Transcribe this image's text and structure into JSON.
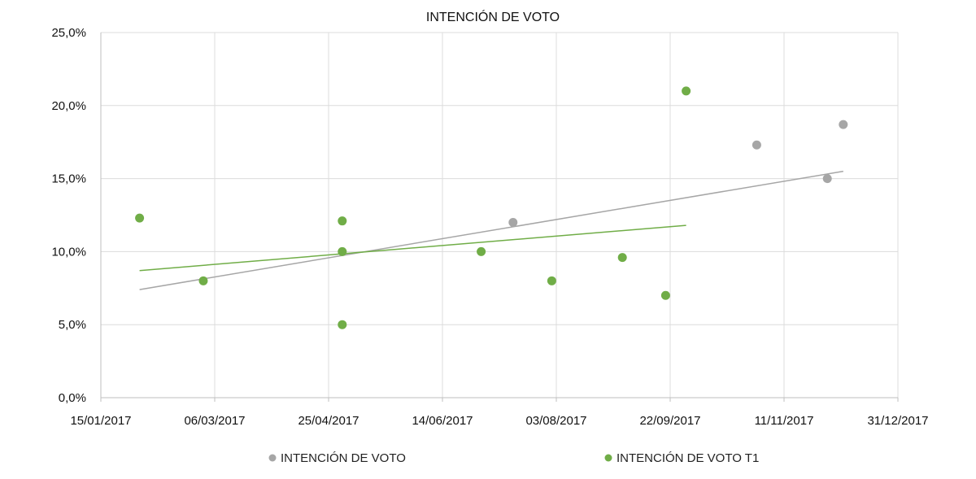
{
  "chart_data": {
    "type": "scatter",
    "title": "INTENCIÓN DE VOTO",
    "xlabel": "",
    "ylabel": "",
    "x_ticks": [
      "15/01/2017",
      "06/03/2017",
      "25/04/2017",
      "14/06/2017",
      "03/08/2017",
      "22/09/2017",
      "11/11/2017",
      "31/12/2017"
    ],
    "x_tick_days": [
      0,
      50,
      100,
      150,
      200,
      250,
      300,
      350
    ],
    "xlim_days": [
      0,
      350
    ],
    "y_ticks": [
      "0,0%",
      "5,0%",
      "10,0%",
      "15,0%",
      "20,0%",
      "25,0%"
    ],
    "y_tick_values": [
      0,
      5,
      10,
      15,
      20,
      25
    ],
    "ylim": [
      0,
      25
    ],
    "grid": true,
    "legend_position": "bottom",
    "series": [
      {
        "name": "INTENCIÓN DE VOTO",
        "color": "#a6a6a6",
        "points": [
          {
            "day": 181,
            "value": 12.0
          },
          {
            "day": 288,
            "value": 17.3
          },
          {
            "day": 319,
            "value": 15.0
          },
          {
            "day": 326,
            "value": 18.7
          }
        ],
        "trendline": {
          "from": [
            17,
            7.4
          ],
          "to": [
            326,
            15.5
          ]
        }
      },
      {
        "name": "INTENCIÓN DE VOTO T1",
        "color": "#70ad47",
        "points": [
          {
            "day": 17,
            "value": 12.3
          },
          {
            "day": 45,
            "value": 8.0
          },
          {
            "day": 106,
            "value": 12.1
          },
          {
            "day": 106,
            "value": 10.0
          },
          {
            "day": 106,
            "value": 5.0
          },
          {
            "day": 167,
            "value": 10.0
          },
          {
            "day": 198,
            "value": 8.0
          },
          {
            "day": 229,
            "value": 9.6
          },
          {
            "day": 248,
            "value": 7.0
          },
          {
            "day": 257,
            "value": 21.0
          }
        ],
        "trendline": {
          "from": [
            17,
            8.7
          ],
          "to": [
            257,
            11.8
          ]
        }
      }
    ]
  }
}
